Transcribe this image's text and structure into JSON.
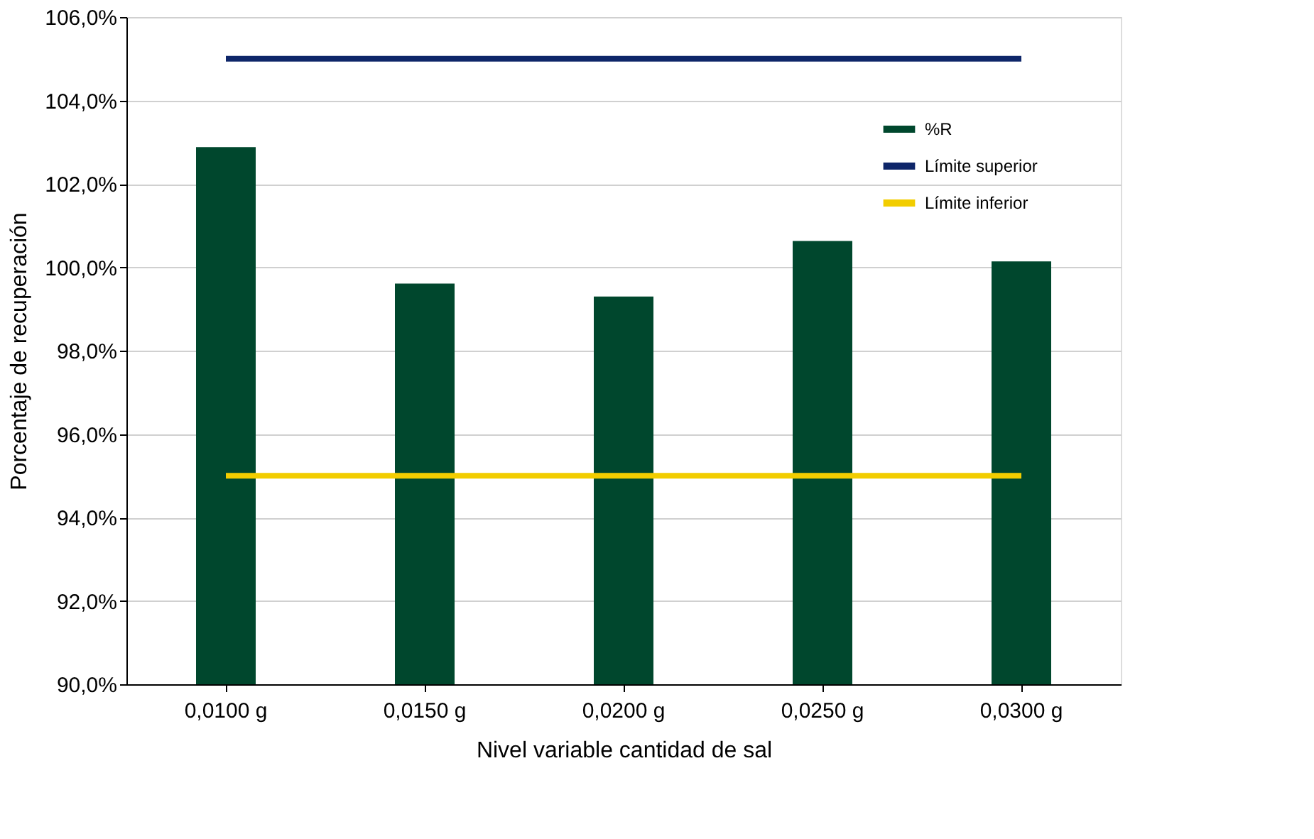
{
  "chart_data": {
    "type": "bar",
    "xlabel": "Nivel variable cantidad de sal",
    "ylabel": "Porcentaje de recuperación",
    "categories": [
      "0,0100 g",
      "0,0150 g",
      "0,0200 g",
      "0,0250 g",
      "0,0300 g"
    ],
    "series": [
      {
        "name": "%R",
        "color": "#00472d",
        "values": [
          102.88,
          99.61,
          99.3,
          100.63,
          100.14
        ]
      },
      {
        "name": "Límite superior",
        "type": "line",
        "color": "#0e2669",
        "values": [
          105,
          105,
          105,
          105,
          105
        ]
      },
      {
        "name": "Límite inferior",
        "type": "line",
        "color": "#f2cd00",
        "values": [
          95,
          95,
          95,
          95,
          95
        ]
      }
    ],
    "ylim": [
      90,
      106
    ],
    "yticks": [
      {
        "value": 90,
        "label": "90,0%"
      },
      {
        "value": 92,
        "label": "92,0%"
      },
      {
        "value": 94,
        "label": "94,0%"
      },
      {
        "value": 96,
        "label": "96,0%"
      },
      {
        "value": 98,
        "label": "98,0%"
      },
      {
        "value": 100,
        "label": "100,0%"
      },
      {
        "value": 102,
        "label": "102,0%"
      },
      {
        "value": 104,
        "label": "104,0%"
      },
      {
        "value": 106,
        "label": "106,0%"
      }
    ],
    "grid": "y",
    "legend": "top right"
  }
}
